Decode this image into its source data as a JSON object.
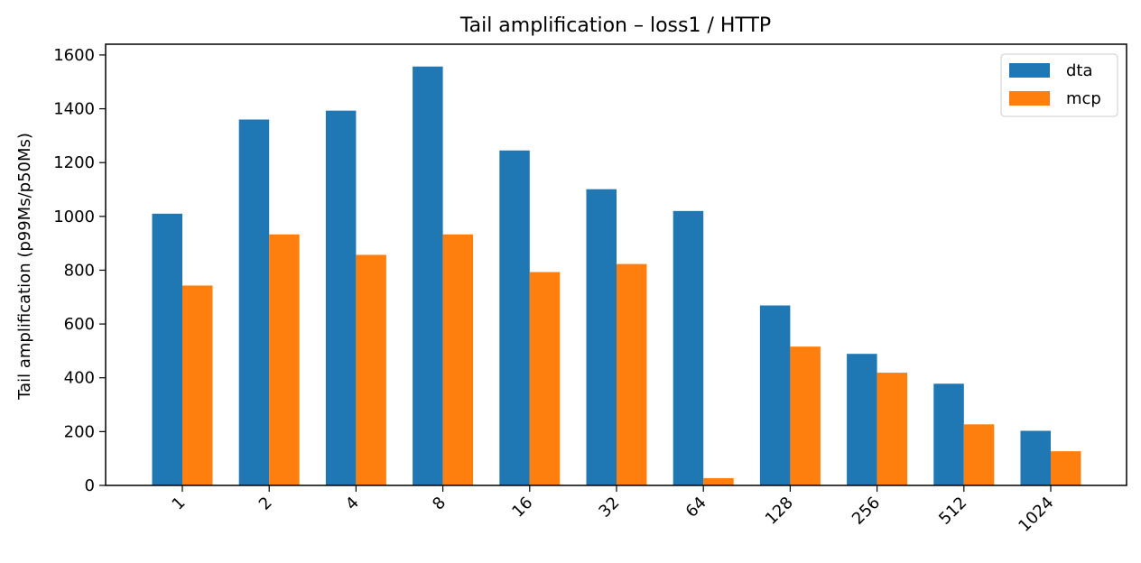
{
  "chart_data": {
    "type": "bar",
    "title": "Tail amplification – loss1 / HTTP",
    "xlabel": "",
    "ylabel": "Tail amplification (p99Ms/p50Ms)",
    "categories": [
      "1",
      "2",
      "4",
      "8",
      "16",
      "32",
      "64",
      "128",
      "256",
      "512",
      "1024"
    ],
    "series": [
      {
        "name": "dta",
        "color": "#1f77b4",
        "values": [
          1010,
          1360,
          1393,
          1557,
          1245,
          1101,
          1020,
          669,
          489,
          378,
          203
        ]
      },
      {
        "name": "mcp",
        "color": "#ff7f0e",
        "values": [
          743,
          933,
          857,
          933,
          793,
          823,
          27,
          516,
          419,
          227,
          127
        ]
      }
    ],
    "ylim": [
      0,
      1640
    ],
    "yticks": [
      0,
      200,
      400,
      600,
      800,
      1000,
      1200,
      1400,
      1600
    ],
    "legend": "top-right",
    "grid": false
  }
}
